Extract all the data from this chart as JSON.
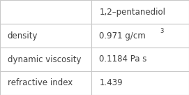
{
  "col_header": "1,2–pentanediol",
  "rows": [
    {
      "label": "density",
      "value": "0.971 g/cm",
      "superscript": "3"
    },
    {
      "label": "dynamic viscosity",
      "value": "0.1184 Pa s",
      "superscript": ""
    },
    {
      "label": "refractive index",
      "value": "1.439",
      "superscript": ""
    }
  ],
  "bg_color": "#ffffff",
  "grid_color": "#c8c8c8",
  "text_color": "#404040",
  "font_size": 8.5,
  "col_split": 0.485,
  "figsize": [
    2.71,
    1.36
  ],
  "dpi": 100
}
